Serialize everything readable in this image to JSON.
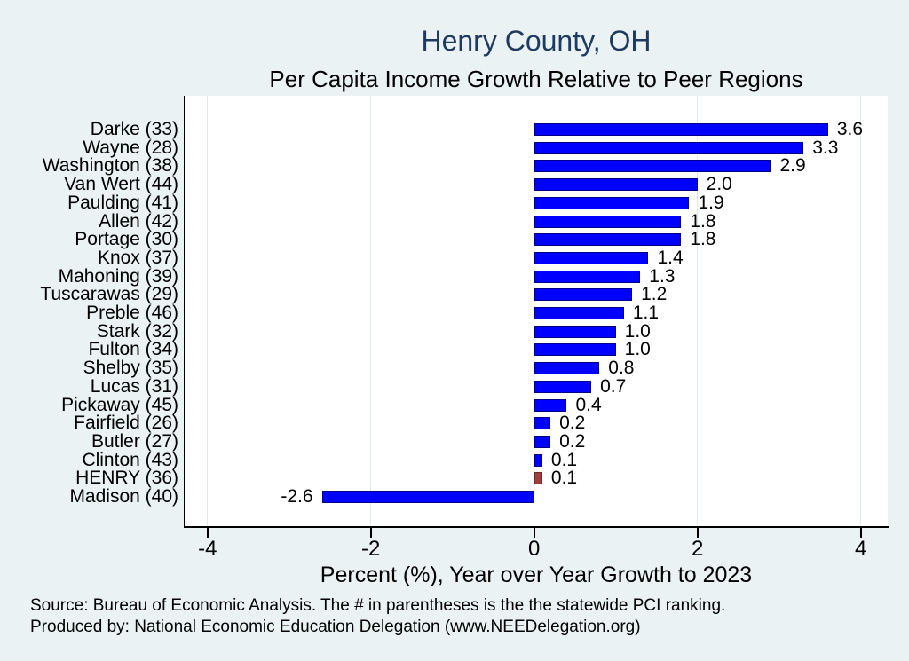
{
  "chart_data": {
    "type": "bar",
    "orientation": "horizontal",
    "title": "Henry County, OH",
    "subtitle": "Per Capita Income Growth Relative to Peer Regions",
    "xlabel": "Percent (%), Year over Year Growth to 2023",
    "categories": [
      "Darke (33)",
      "Wayne (28)",
      "Washington (38)",
      "Van Wert (44)",
      "Paulding (41)",
      "Allen (42)",
      "Portage (30)",
      "Knox (37)",
      "Mahoning (39)",
      "Tuscarawas (29)",
      "Preble (46)",
      "Stark (32)",
      "Fulton (34)",
      "Shelby (35)",
      "Lucas (31)",
      "Pickaway (45)",
      "Fairfield (26)",
      "Butler (27)",
      "Clinton (43)",
      "HENRY (36)",
      "Madison (40)"
    ],
    "values": [
      3.6,
      3.3,
      2.9,
      2.0,
      1.9,
      1.8,
      1.8,
      1.4,
      1.3,
      1.2,
      1.1,
      1.0,
      1.0,
      0.8,
      0.7,
      0.4,
      0.2,
      0.2,
      0.1,
      0.1,
      -2.6
    ],
    "value_labels": [
      "3.6",
      "3.3",
      "2.9",
      "2.0",
      "1.9",
      "1.8",
      "1.8",
      "1.4",
      "1.3",
      "1.2",
      "1.1",
      "1.0",
      "1.0",
      "0.8",
      "0.7",
      "0.4",
      "0.2",
      "0.2",
      "0.1",
      "0.1",
      "-2.6"
    ],
    "highlight_category": "HENRY (36)",
    "highlight_index": 19,
    "xticks": [
      "-4",
      "-2",
      "0",
      "2",
      "4"
    ],
    "xtick_values": [
      -4,
      -2,
      0,
      2,
      4
    ],
    "xlim": [
      -4.28,
      4.33
    ],
    "grid": true,
    "legend": "none",
    "colors": {
      "background": "#eaf2f3",
      "plot_background": "#ffffff",
      "grid": "#dde9eb",
      "bar_fill": "#0000ff",
      "bar_border": "#00008b",
      "highlight_fill": "#a33d3d",
      "highlight_border": "#702828",
      "title": "#1e3a5f",
      "axis": "#000000"
    }
  },
  "notes": {
    "source_line": "Source: Bureau of Economic Analysis. The # in parentheses is the the statewide PCI ranking.",
    "produced_by_line": "Produced by: National Economic Education Delegation (www.NEEDelegation.org)"
  }
}
